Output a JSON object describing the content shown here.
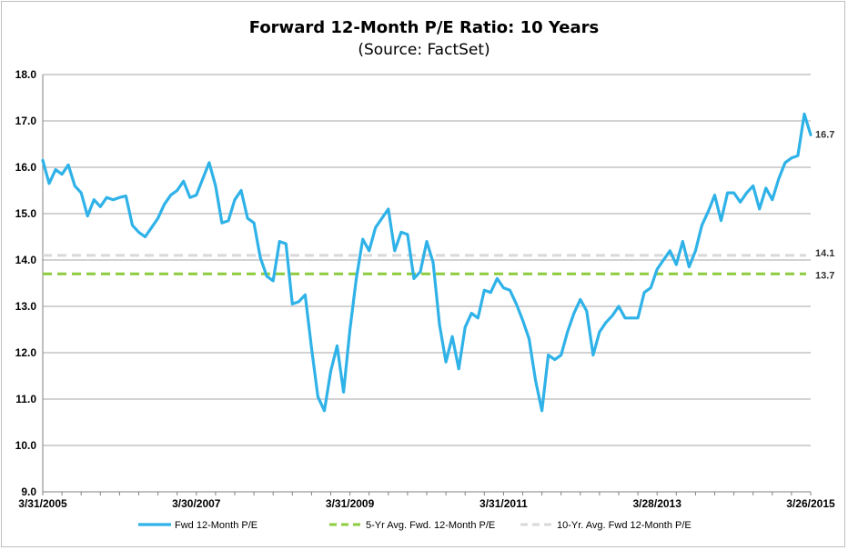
{
  "chart_data": {
    "type": "line",
    "title": "Forward 12-Month P/E Ratio: 10 Years",
    "subtitle": "(Source: FactSet)",
    "xlabel": "",
    "ylabel": "",
    "ylim": [
      9.0,
      18.0
    ],
    "yticks": [
      "9.0",
      "10.0",
      "11.0",
      "12.0",
      "13.0",
      "14.0",
      "15.0",
      "16.0",
      "17.0",
      "18.0"
    ],
    "xticks": [
      "3/31/2005",
      "3/30/2007",
      "3/31/2009",
      "3/31/2011",
      "3/28/2013",
      "3/26/2015"
    ],
    "grid": true,
    "legend_position": "bottom",
    "colors": {
      "main": "#2fb2e8",
      "avg5": "#8dcc3f",
      "avg10": "#d9d9d9"
    },
    "series": [
      {
        "name": "Fwd 12-Month P/E",
        "values": [
          16.15,
          15.65,
          15.95,
          15.85,
          16.05,
          15.6,
          15.45,
          14.95,
          15.3,
          15.15,
          15.35,
          15.3,
          15.35,
          15.38,
          14.75,
          14.6,
          14.5,
          14.7,
          14.9,
          15.2,
          15.4,
          15.5,
          15.7,
          15.35,
          15.4,
          15.75,
          16.1,
          15.6,
          14.8,
          14.85,
          15.3,
          15.5,
          14.9,
          14.8,
          14.05,
          13.65,
          13.55,
          14.4,
          14.35,
          13.05,
          13.1,
          13.25,
          12.1,
          11.05,
          10.75,
          11.6,
          12.15,
          11.15,
          12.5,
          13.6,
          14.45,
          14.2,
          14.7,
          14.9,
          15.1,
          14.2,
          14.6,
          14.55,
          13.6,
          13.75,
          14.4,
          13.95,
          12.6,
          11.8,
          12.35,
          11.65,
          12.55,
          12.85,
          12.75,
          13.35,
          13.3,
          13.6,
          13.4,
          13.35,
          13.05,
          12.7,
          12.3,
          11.4,
          10.75,
          11.95,
          11.85,
          11.95,
          12.45,
          12.85,
          13.15,
          12.9,
          11.95,
          12.45,
          12.65,
          12.8,
          13.0,
          12.75,
          12.75,
          12.75,
          13.3,
          13.4,
          13.8,
          14.0,
          14.2,
          13.9,
          14.4,
          13.85,
          14.2,
          14.75,
          15.05,
          15.4,
          14.85,
          15.45,
          15.45,
          15.25,
          15.45,
          15.6,
          15.1,
          15.55,
          15.3,
          15.75,
          16.1,
          16.2,
          16.25,
          17.15,
          16.7
        ]
      },
      {
        "name": "5-Yr Avg. Fwd. 12-Month P/E",
        "values": [
          13.7,
          13.7
        ],
        "end_label": "13.7"
      },
      {
        "name": "10-Yr. Avg. Fwd 12-Month P/E",
        "values": [
          14.1,
          14.1
        ],
        "end_label": "14.1"
      }
    ],
    "last_value_label": "16.7"
  }
}
